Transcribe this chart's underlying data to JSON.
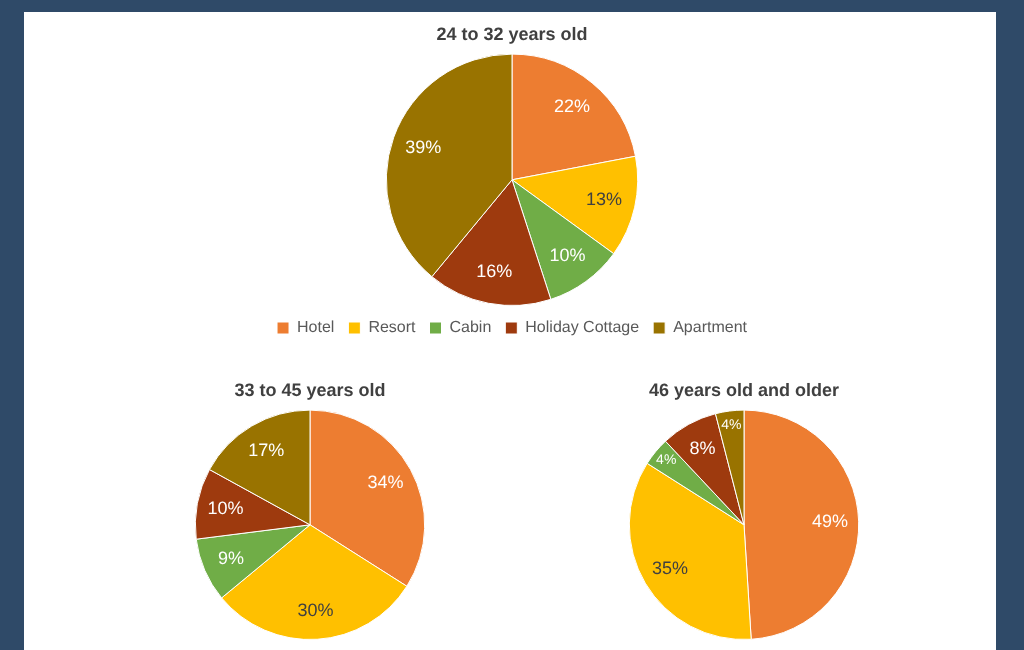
{
  "chart_data": [
    {
      "type": "pie",
      "title": "24 to 32 years old",
      "categories": [
        "Hotel",
        "Resort",
        "Cabin",
        "Holiday Cottage",
        "Apartment"
      ],
      "values": [
        22,
        13,
        10,
        16,
        39
      ],
      "value_labels": [
        "22%",
        "13%",
        "10%",
        "16%",
        "39%"
      ],
      "colors": [
        "#ed7d31",
        "#ffc000",
        "#70ad47",
        "#9e3a0e",
        "#997300"
      ],
      "legend": "bottom"
    },
    {
      "type": "pie",
      "title": "33 to 45 years old",
      "categories": [
        null,
        null,
        null,
        null,
        null
      ],
      "values": [
        34,
        30,
        9,
        10,
        17
      ],
      "value_labels": [
        "34%",
        "30%",
        "9%",
        "10%",
        "17%"
      ],
      "colors": [
        "#ed7d31",
        "#ffc000",
        "#70ad47",
        "#9e3a0e",
        "#997300"
      ]
    },
    {
      "type": "pie",
      "title": "46 years old and older",
      "categories": [
        null,
        null,
        null,
        null,
        null
      ],
      "values": [
        49,
        35,
        4,
        8,
        4
      ],
      "value_labels": [
        "49%",
        "35%",
        "4%",
        "8%",
        "4%"
      ],
      "colors": [
        "#ed7d31",
        "#ffc000",
        "#70ad47",
        "#9e3a0e",
        "#997300"
      ]
    }
  ]
}
